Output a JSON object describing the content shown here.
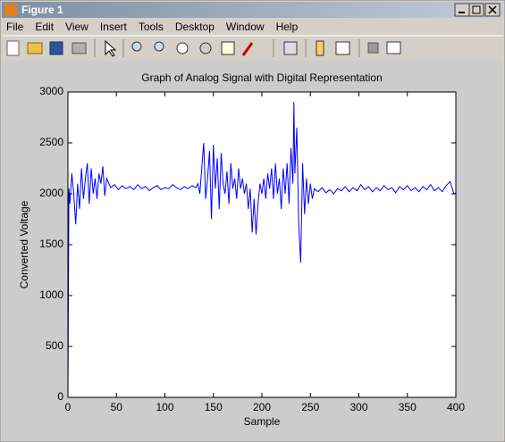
{
  "window": {
    "title": "Figure 1",
    "menu": [
      "File",
      "Edit",
      "View",
      "Insert",
      "Tools",
      "Desktop",
      "Window",
      "Help"
    ]
  },
  "chart_data": {
    "type": "line",
    "title": "Graph of Analog Signal with Digital Representation",
    "x_label": "Sample",
    "y_label": "Converted Voltage",
    "color": "#0000ff",
    "xlim": [
      0,
      400
    ],
    "ylim": [
      0,
      3000
    ],
    "xticks": [
      0,
      50,
      100,
      150,
      200,
      250,
      300,
      350,
      400
    ],
    "yticks": [
      0,
      500,
      1000,
      1500,
      2000,
      2500,
      3000
    ],
    "x": [
      0,
      1,
      2,
      4,
      6,
      8,
      10,
      12,
      14,
      16,
      18,
      20,
      22,
      24,
      26,
      28,
      30,
      32,
      34,
      36,
      38,
      40,
      44,
      48,
      52,
      56,
      60,
      64,
      68,
      72,
      76,
      80,
      84,
      88,
      92,
      96,
      100,
      104,
      108,
      112,
      116,
      120,
      124,
      128,
      132,
      134,
      136,
      138,
      140,
      142,
      144,
      146,
      148,
      150,
      152,
      154,
      156,
      158,
      160,
      162,
      164,
      166,
      168,
      170,
      172,
      174,
      176,
      178,
      180,
      182,
      184,
      186,
      188,
      190,
      192,
      194,
      196,
      198,
      200,
      202,
      204,
      206,
      208,
      210,
      212,
      214,
      216,
      218,
      220,
      222,
      224,
      226,
      228,
      230,
      232,
      233,
      234,
      236,
      238,
      240,
      242,
      244,
      246,
      248,
      250,
      252,
      254,
      258,
      262,
      266,
      270,
      274,
      278,
      282,
      286,
      290,
      294,
      298,
      302,
      306,
      310,
      314,
      318,
      322,
      326,
      330,
      334,
      338,
      342,
      346,
      350,
      354,
      358,
      362,
      366,
      370,
      374,
      378,
      382,
      386,
      390,
      394,
      396,
      398,
      400
    ],
    "values": [
      0,
      2050,
      1900,
      2200,
      2000,
      1700,
      2100,
      1850,
      2250,
      1950,
      2150,
      2300,
      1900,
      2250,
      2000,
      2150,
      1950,
      2200,
      2100,
      2270,
      1980,
      2150,
      2060,
      2090,
      2040,
      2080,
      2050,
      2070,
      2040,
      2090,
      2050,
      2070,
      2030,
      2060,
      2080,
      2040,
      2060,
      2050,
      2090,
      2060,
      2040,
      2070,
      2050,
      2080,
      2060,
      2100,
      2000,
      2250,
      2500,
      1950,
      2150,
      2420,
      1750,
      2480,
      2050,
      2350,
      1850,
      2400,
      2100,
      2000,
      2220,
      1900,
      2300,
      2050,
      2150,
      1950,
      2250,
      2050,
      2150,
      2000,
      2100,
      1850,
      2050,
      1620,
      1950,
      1600,
      1900,
      2100,
      2000,
      2150,
      1950,
      2200,
      2050,
      2250,
      1950,
      2300,
      2000,
      2150,
      1850,
      2250,
      2000,
      2300,
      1900,
      2450,
      2100,
      2900,
      2200,
      2650,
      1700,
      1320,
      2300,
      1800,
      2150,
      1900,
      2100,
      1950,
      2050,
      2020,
      2060,
      2010,
      2040,
      2000,
      2050,
      2030,
      2070,
      2020,
      2060,
      2030,
      2090,
      2040,
      2070,
      2020,
      2060,
      2030,
      2080,
      2040,
      2060,
      2010,
      2070,
      2040,
      2080,
      2030,
      2060,
      2020,
      2070,
      2040,
      2090,
      2030,
      2060,
      2020,
      2080,
      2120,
      2060,
      2000,
      2010
    ]
  }
}
